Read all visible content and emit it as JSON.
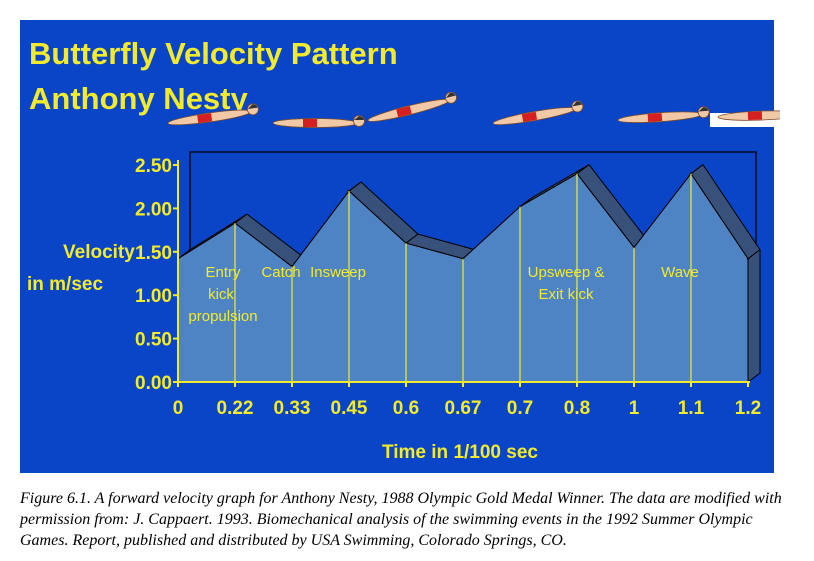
{
  "chart_data": {
    "type": "area",
    "title_lines": [
      "Butterfly Velocity Pattern",
      "Anthony Nesty"
    ],
    "xlabel": "Time in 1/100 sec",
    "ylabel_lines": [
      "Velocity",
      "in m/sec"
    ],
    "x_ticks": [
      "0",
      "0.22",
      "0.33",
      "0.45",
      "0.6",
      "0.67",
      "0.7",
      "0.8",
      "1",
      "1.1",
      "1.2"
    ],
    "y_ticks": [
      "0.00",
      "0.50",
      "1.00",
      "1.50",
      "2.00",
      "2.50"
    ],
    "ylim": [
      0,
      2.5
    ],
    "values": [
      1.42,
      1.83,
      1.33,
      2.2,
      1.6,
      1.42,
      2.02,
      2.4,
      1.55,
      2.4,
      1.42
    ],
    "phases": [
      {
        "lines": [
          "Entry",
          "kick",
          "propulsion"
        ],
        "at_tick": 1
      },
      {
        "lines": [
          "Catch"
        ],
        "at_tick": 2
      },
      {
        "lines": [
          "Insweep"
        ],
        "at_tick": 3
      },
      {
        "lines": [
          "Upsweep &",
          "Exit kick"
        ],
        "at_tick": 7
      },
      {
        "lines": [
          "Wave"
        ],
        "at_tick": 9
      }
    ],
    "colors": {
      "background": "#0a45c8",
      "text": "#f2ea2c",
      "area": "#4f84c4",
      "depth": "#37517a",
      "drop_lines": "#f2ea2c"
    },
    "grid": false,
    "legend": "none"
  },
  "caption": "Figure 6.1. A forward velocity graph for Anthony Nesty, 1988 Olympic Gold Medal Winner. The data are modified with permission from: J. Cappaert. 1993. Biomechanical analysis of the swimming events in the 1992 Summer Olympic Games. Report, published and distributed by USA Swimming, Colorado Springs, CO."
}
